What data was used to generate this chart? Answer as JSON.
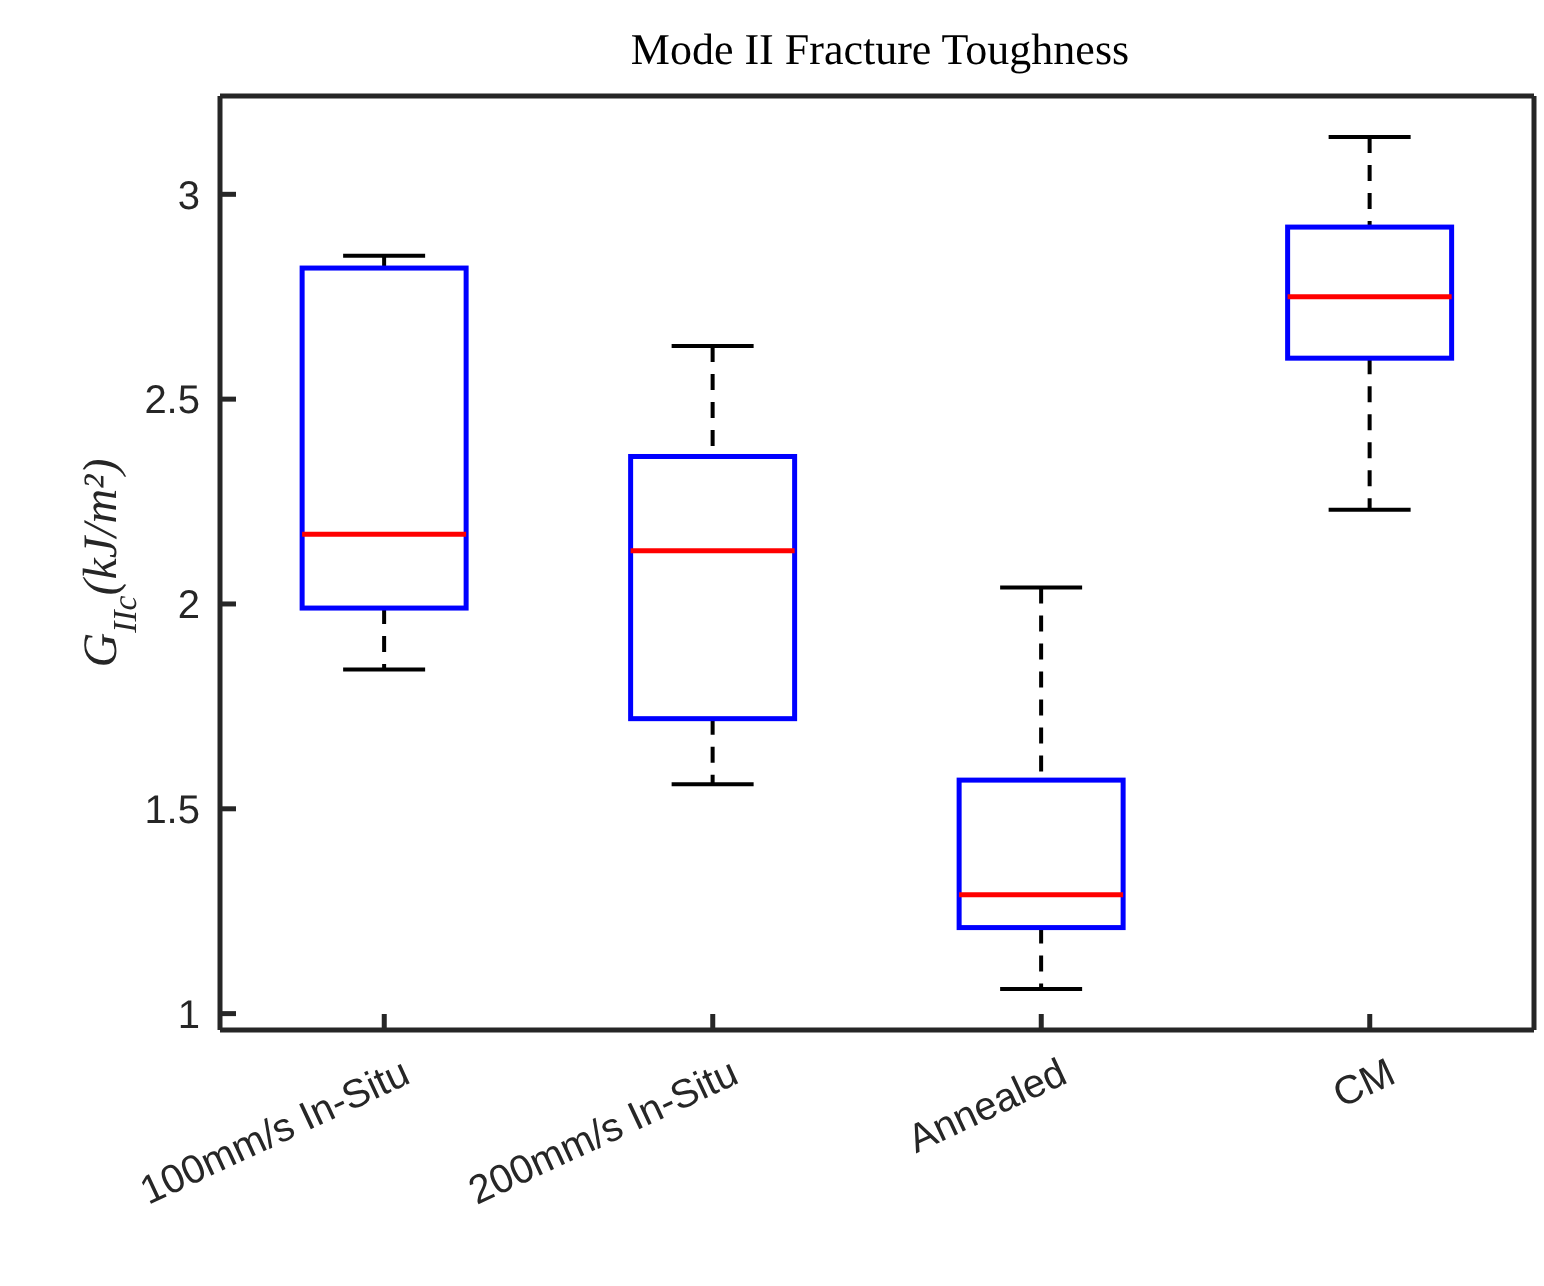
{
  "chart_data": {
    "type": "box",
    "title": "Mode II Fracture Toughness",
    "ylabel": "G$_{IIc}$(kJ/m²)",
    "categories": [
      "100mm/s In-Situ",
      "200mm/s In-Situ",
      "Annealed",
      "CM"
    ],
    "color": "#0000ff",
    "boxes": [
      {
        "low": 1.84,
        "q1": 1.99,
        "median": 2.17,
        "q3": 2.82,
        "high": 2.85
      },
      {
        "low": 1.56,
        "q1": 1.72,
        "median": 2.13,
        "q3": 2.36,
        "high": 2.63
      },
      {
        "low": 1.06,
        "q1": 1.21,
        "median": 1.29,
        "q3": 1.57,
        "high": 2.04
      },
      {
        "low": 2.23,
        "q1": 2.6,
        "median": 2.75,
        "q3": 2.92,
        "high": 3.14
      }
    ],
    "ylim": [
      0.96,
      3.24
    ],
    "yticks": [
      1,
      1.5,
      2,
      2.5,
      3
    ],
    "grid": false,
    "legend": false
  }
}
